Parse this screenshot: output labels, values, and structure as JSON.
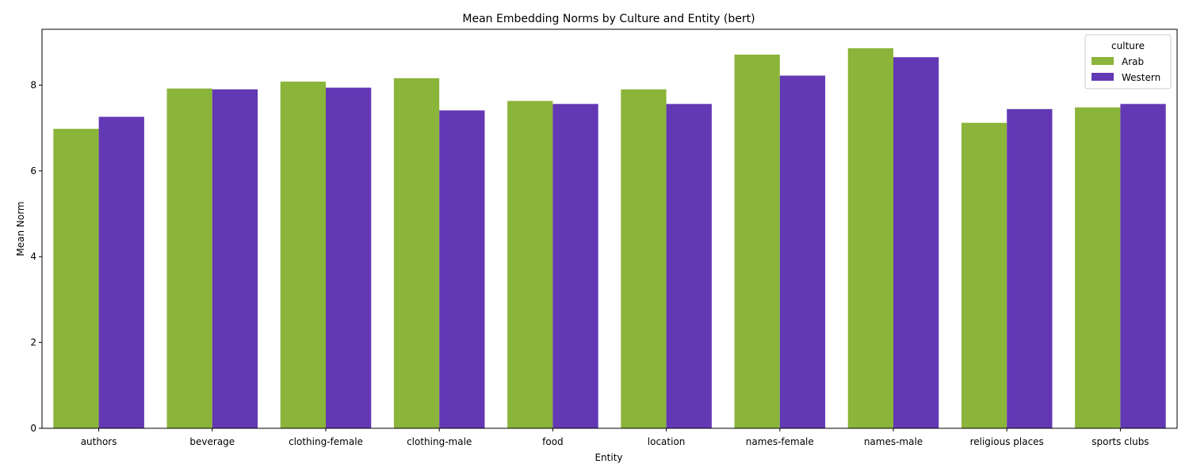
{
  "chart_data": {
    "type": "bar",
    "title": "Mean Embedding Norms by Culture and Entity (bert)",
    "xlabel": "Entity",
    "ylabel": "Mean Norm",
    "ylim": [
      0,
      9.3
    ],
    "yticks": [
      0,
      2,
      4,
      6,
      8
    ],
    "grid": false,
    "legend_position": "top-right",
    "legend_title": "culture",
    "categories": [
      "authors",
      "beverage",
      "clothing-female",
      "clothing-male",
      "food",
      "location",
      "names-female",
      "names-male",
      "religious places",
      "sports clubs"
    ],
    "series": [
      {
        "name": "Arab",
        "color": "#8bb43a",
        "values": [
          6.98,
          7.92,
          8.08,
          8.16,
          7.63,
          7.9,
          8.71,
          8.86,
          7.12,
          7.48
        ]
      },
      {
        "name": "Western",
        "color": "#6338b4",
        "values": [
          7.26,
          7.9,
          7.94,
          7.41,
          7.56,
          7.56,
          8.22,
          8.65,
          7.44,
          7.56
        ]
      }
    ]
  }
}
